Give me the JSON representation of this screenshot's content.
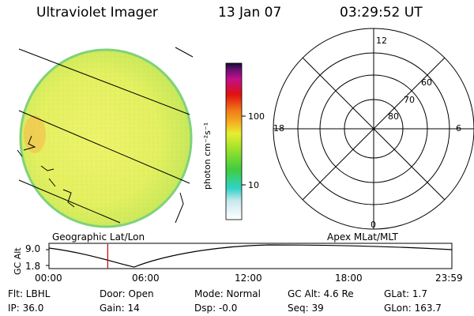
{
  "header": {
    "instrument": "Ultraviolet Imager",
    "date": "13 Jan 07",
    "time": "03:29:52 UT"
  },
  "colorbar": {
    "unit_label": "photon cm⁻²s⁻¹",
    "ticks": [
      "100",
      "10"
    ]
  },
  "polar_plot": {
    "mlt_labels": [
      "12",
      "18",
      "6",
      "0"
    ],
    "mlat_labels": [
      "60",
      "70",
      "80"
    ]
  },
  "timeline": {
    "left_label": "Geographic Lat/Lon",
    "right_label": "Apex MLat/MLT",
    "axis_title": "GC Alt",
    "y_ticks": [
      "9.0",
      "1.8"
    ],
    "x_ticks": [
      "00:00",
      "06:00",
      "12:00",
      "18:00",
      "23:59"
    ],
    "current_marker_hours": 3.5,
    "curve_color": "#000000",
    "marker_color": "#cc0000"
  },
  "footer": {
    "flt": "Flt: LBHL",
    "ip": "IP: 36.0",
    "door": "Door: Open",
    "gain": "Gain: 14",
    "mode": "Mode: Normal",
    "dsp": "Dsp:   -0.0",
    "gcalt": "GC Alt: 4.6 Re",
    "seq": "Seq: 39",
    "glat": "GLat:     1.7",
    "glon": "GLon: 163.7"
  }
}
